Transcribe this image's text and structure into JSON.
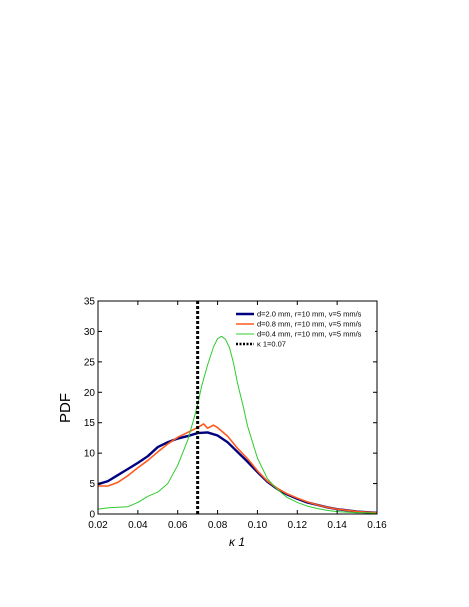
{
  "chart_data": {
    "type": "line",
    "xlabel": "κ 1",
    "ylabel": "PDF",
    "xlim": [
      0.02,
      0.16
    ],
    "ylim": [
      0,
      35
    ],
    "xticks": [
      0.02,
      0.04,
      0.06,
      0.08,
      0.1,
      0.12,
      0.14,
      0.16
    ],
    "xtick_labels": [
      "0.02",
      "0.04",
      "0.06",
      "0.08",
      "0.10",
      "0.12",
      "0.14",
      "0.16"
    ],
    "yticks": [
      0,
      5,
      10,
      15,
      20,
      25,
      30,
      35
    ],
    "ytick_labels": [
      "0",
      "5",
      "10",
      "15",
      "20",
      "25",
      "30",
      "35"
    ],
    "grid": false,
    "legend_position": "top-right",
    "series": [
      {
        "name": "d=2.0 mm, r=10 mm, v=5 mm/s",
        "color": "#000080",
        "width": 2.4,
        "style": "solid",
        "x": [
          0.02,
          0.025,
          0.03,
          0.035,
          0.04,
          0.045,
          0.05,
          0.055,
          0.06,
          0.065,
          0.07,
          0.075,
          0.08,
          0.085,
          0.09,
          0.095,
          0.1,
          0.105,
          0.11,
          0.115,
          0.12,
          0.125,
          0.13,
          0.135,
          0.14,
          0.145,
          0.15,
          0.155,
          0.16
        ],
        "y": [
          4.9,
          5.4,
          6.4,
          7.4,
          8.4,
          9.5,
          11.0,
          11.8,
          12.4,
          12.8,
          13.3,
          13.4,
          12.9,
          11.8,
          10.2,
          8.6,
          6.9,
          5.3,
          4.1,
          3.2,
          2.5,
          1.9,
          1.5,
          1.1,
          0.8,
          0.6,
          0.4,
          0.3,
          0.2
        ]
      },
      {
        "name": "d=0.8 mm, r=10 mm, v=5 mm/s",
        "color": "#ff5a1e",
        "width": 1.6,
        "style": "solid",
        "x": [
          0.02,
          0.025,
          0.03,
          0.035,
          0.04,
          0.045,
          0.05,
          0.055,
          0.06,
          0.065,
          0.07,
          0.073,
          0.075,
          0.078,
          0.08,
          0.085,
          0.09,
          0.095,
          0.1,
          0.105,
          0.11,
          0.115,
          0.12,
          0.125,
          0.13,
          0.135,
          0.14,
          0.145,
          0.15,
          0.155,
          0.16
        ],
        "y": [
          4.6,
          4.6,
          5.2,
          6.3,
          7.6,
          8.8,
          10.2,
          11.5,
          12.6,
          13.4,
          14.2,
          14.8,
          14.1,
          14.6,
          14.2,
          12.8,
          10.8,
          9.1,
          7.1,
          5.4,
          4.2,
          3.3,
          2.6,
          2.0,
          1.5,
          1.1,
          0.8,
          0.6,
          0.4,
          0.3,
          0.2
        ]
      },
      {
        "name": "d=0.4 mm, r=10 mm, v=5 mm/s",
        "color": "#2ecc2e",
        "width": 1.0,
        "style": "solid",
        "x": [
          0.02,
          0.025,
          0.03,
          0.035,
          0.04,
          0.045,
          0.05,
          0.055,
          0.06,
          0.065,
          0.068,
          0.07,
          0.072,
          0.075,
          0.078,
          0.08,
          0.082,
          0.084,
          0.086,
          0.088,
          0.09,
          0.093,
          0.095,
          0.1,
          0.105,
          0.11,
          0.115,
          0.12,
          0.125,
          0.13,
          0.135,
          0.14,
          0.145,
          0.15,
          0.155,
          0.16
        ],
        "y": [
          0.8,
          1.0,
          1.1,
          1.2,
          1.9,
          2.9,
          3.6,
          5.0,
          8.0,
          12.1,
          15.5,
          18.0,
          21.0,
          24.5,
          27.5,
          28.8,
          29.2,
          28.7,
          27.3,
          24.8,
          21.5,
          17.5,
          14.5,
          9.2,
          5.8,
          4.0,
          2.7,
          1.9,
          1.3,
          0.9,
          0.6,
          0.4,
          0.3,
          0.2,
          0.2,
          0.1
        ]
      },
      {
        "name": "κ 1=0.07",
        "color": "#000000",
        "width": 3.0,
        "style": "dotted",
        "x": [
          0.07,
          0.07
        ],
        "y": [
          0,
          35
        ]
      }
    ]
  }
}
